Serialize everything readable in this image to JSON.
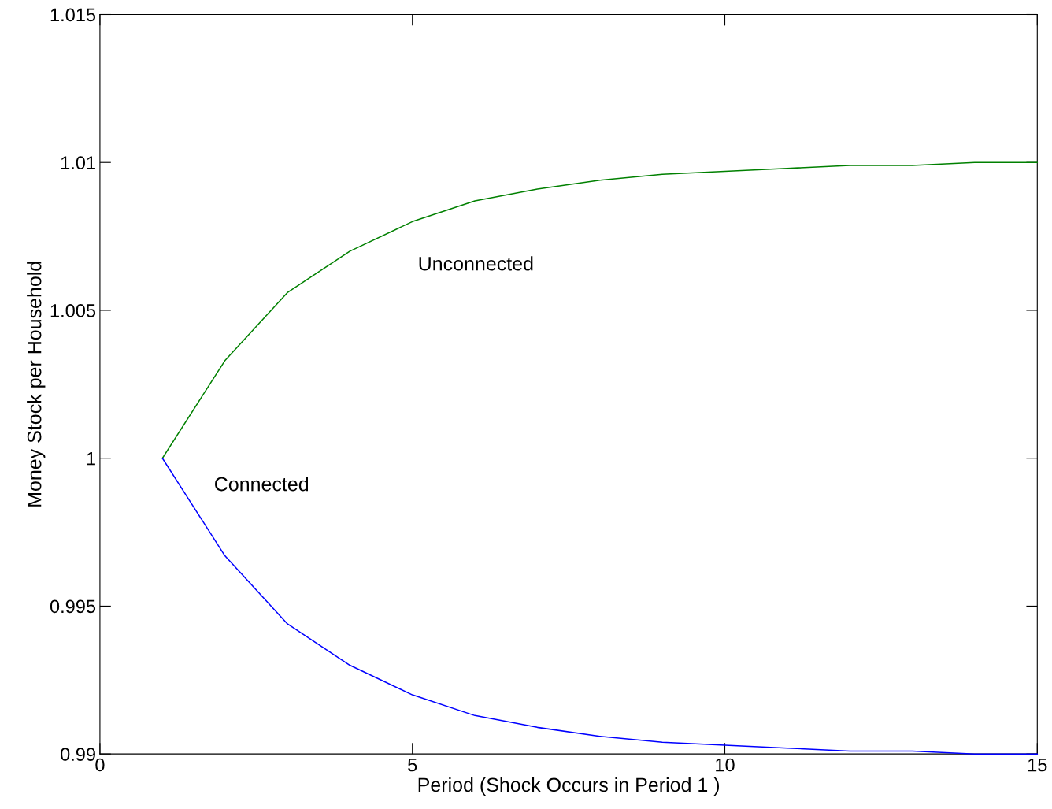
{
  "chart_data": {
    "type": "line",
    "xlabel": "Period (Shock Occurs in Period 1 )",
    "ylabel": "Money Stock per Household",
    "x": [
      1,
      2,
      3,
      4,
      5,
      6,
      7,
      8,
      9,
      10,
      11,
      12,
      13,
      14,
      15
    ],
    "series": [
      {
        "name": "Unconnected",
        "color": "#008000",
        "values": [
          1.0,
          1.0033,
          1.0056,
          1.007,
          1.008,
          1.0087,
          1.0091,
          1.0094,
          1.0096,
          1.0097,
          1.0098,
          1.0099,
          1.0099,
          1.01,
          1.01
        ]
      },
      {
        "name": "Connected",
        "color": "#0000ff",
        "values": [
          1.0,
          0.9967,
          0.9944,
          0.993,
          0.992,
          0.9913,
          0.9909,
          0.9906,
          0.9904,
          0.9903,
          0.9902,
          0.9901,
          0.9901,
          0.99,
          0.99
        ]
      }
    ],
    "xlim": [
      0,
      15
    ],
    "xticks": [
      0,
      5,
      10,
      15
    ],
    "ylim": [
      0.99,
      1.015
    ],
    "yticks": [
      {
        "value": 0.99,
        "label": "0.99"
      },
      {
        "value": 0.995,
        "label": "0.995"
      },
      {
        "value": 1,
        "label": "1"
      },
      {
        "value": 1.005,
        "label": "1.005"
      },
      {
        "value": 1.01,
        "label": "1.01"
      },
      {
        "value": 1.015,
        "label": "1.015"
      }
    ],
    "grid": false,
    "legend": false,
    "marker": "none",
    "line_style": "solid"
  }
}
